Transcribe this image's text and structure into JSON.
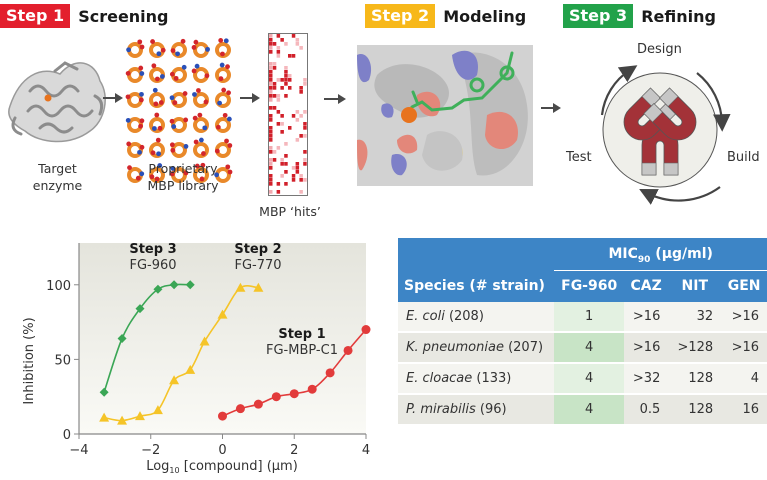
{
  "steps": [
    {
      "badge": "Step 1",
      "title": "Screening",
      "color": "#e31f2d"
    },
    {
      "badge": "Step 2",
      "title": "Modeling",
      "color": "#f7b81a"
    },
    {
      "badge": "Step 3",
      "title": "Refining",
      "color": "#22a24a"
    }
  ],
  "screening": {
    "captions": [
      {
        "line1": "Target",
        "line2": "enzyme"
      },
      {
        "line1": "Proprietary",
        "line2": "MBP library"
      },
      {
        "line1": "MBP ‘hits’",
        "line2": ""
      }
    ]
  },
  "refining_cycle": {
    "labels": [
      "Design",
      "Build",
      "Test"
    ]
  },
  "chart_data": {
    "type": "line",
    "xlabel": "Log10 [compound] (µm)",
    "xlabel_main": "Log",
    "xlabel_sub": "10",
    "xlabel_rest": " [compound] (µm)",
    "ylabel": "Inhibition (%)",
    "xlim": [
      -4,
      4
    ],
    "ylim": [
      0,
      128
    ],
    "xticks": [
      -4,
      -2,
      0,
      2,
      4
    ],
    "xtick_labels": [
      "−4",
      "−2",
      "0",
      "2",
      "4"
    ],
    "yticks": [
      0,
      50,
      100
    ],
    "ytick_labels": [
      "0",
      "50",
      "100"
    ],
    "grid": false,
    "series": [
      {
        "name": "FG-960",
        "step": "Step 3",
        "color": "#3aa655",
        "marker": "diamond",
        "x": [
          -3.3,
          -2.8,
          -2.3,
          -1.8,
          -1.35,
          -0.9
        ],
        "y": [
          28,
          64,
          84,
          97,
          100,
          100
        ]
      },
      {
        "name": "FG-770",
        "step": "Step 2",
        "color": "#f5c428",
        "marker": "triangle",
        "x": [
          -3.3,
          -2.8,
          -2.3,
          -1.8,
          -1.35,
          -0.9,
          -0.5,
          0.0,
          0.5,
          1.0
        ],
        "y": [
          11,
          9,
          12,
          16,
          36,
          43,
          62,
          80,
          98,
          98
        ]
      },
      {
        "name": "FG-MBP-C1",
        "step": "Step 1",
        "color": "#e23b3b",
        "marker": "circle",
        "x": [
          0.0,
          0.5,
          1.0,
          1.5,
          2.0,
          2.5,
          3.0,
          3.5,
          4.0
        ],
        "y": [
          12,
          17,
          20,
          25,
          27,
          30,
          41,
          56,
          70
        ]
      }
    ]
  },
  "table": {
    "group_header": "MIC",
    "group_header_sub": "90",
    "group_header_unit": " (µg/ml)",
    "columns": [
      "Species (# strain)",
      "FG-960",
      "CAZ",
      "NIT",
      "GEN"
    ],
    "rows": [
      {
        "species": "E. coli",
        "strain": " (208)",
        "values": [
          "1",
          ">16",
          "32",
          ">16"
        ]
      },
      {
        "species": "K. pneumoniae",
        "strain": " (207)",
        "values": [
          "4",
          ">16",
          ">128",
          ">16"
        ]
      },
      {
        "species": "E. cloacae",
        "strain": " (133)",
        "values": [
          "4",
          ">32",
          "128",
          "4"
        ]
      },
      {
        "species": "P. mirabilis",
        "strain": " (96)",
        "values": [
          "4",
          "0.5",
          "128",
          "16"
        ]
      }
    ]
  }
}
